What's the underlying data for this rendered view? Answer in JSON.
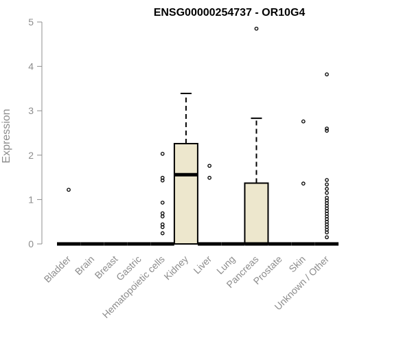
{
  "chart_data": {
    "type": "boxplot",
    "title": "ENSG00000254737 - OR10G4",
    "xlabel": "",
    "ylabel": "Expression",
    "ylim": [
      0,
      5
    ],
    "yticks": [
      0,
      1,
      2,
      3,
      4,
      5
    ],
    "grid": false,
    "colors": {
      "box_fill": "#ede7cd",
      "box_stroke": "#000000",
      "axis": "#8c8c8c",
      "title": "#000000"
    },
    "categories": [
      "Bladder",
      "Brain",
      "Breast",
      "Gastric",
      "Hematopoietic cells",
      "Kidney",
      "Liver",
      "Lung",
      "Pancreas",
      "Prostate",
      "Skin",
      "Unknown / Other"
    ],
    "boxes": [
      {
        "category": "Bladder",
        "q1": 0,
        "median": 0,
        "q3": 0,
        "whisker_low": 0,
        "whisker_high": 0,
        "outliers": [
          1.22
        ]
      },
      {
        "category": "Brain",
        "q1": 0,
        "median": 0,
        "q3": 0,
        "whisker_low": 0,
        "whisker_high": 0,
        "outliers": []
      },
      {
        "category": "Breast",
        "q1": 0,
        "median": 0,
        "q3": 0,
        "whisker_low": 0,
        "whisker_high": 0,
        "outliers": []
      },
      {
        "category": "Gastric",
        "q1": 0,
        "median": 0,
        "q3": 0,
        "whisker_low": 0,
        "whisker_high": 0,
        "outliers": []
      },
      {
        "category": "Hematopoietic cells",
        "q1": 0,
        "median": 0,
        "q3": 0,
        "whisker_low": 0,
        "whisker_high": 0,
        "outliers": [
          2.03,
          1.49,
          1.43,
          0.93,
          0.69,
          0.62,
          0.44,
          0.38,
          0.24
        ]
      },
      {
        "category": "Kidney",
        "q1": 0,
        "median": 1.56,
        "q3": 2.26,
        "whisker_low": 0,
        "whisker_high": 3.39,
        "outliers": []
      },
      {
        "category": "Liver",
        "q1": 0,
        "median": 0,
        "q3": 0,
        "whisker_low": 0,
        "whisker_high": 0,
        "outliers": [
          1.76,
          1.49
        ]
      },
      {
        "category": "Lung",
        "q1": 0,
        "median": 0,
        "q3": 0,
        "whisker_low": 0,
        "whisker_high": 0,
        "outliers": []
      },
      {
        "category": "Pancreas",
        "q1": 0,
        "median": 0,
        "q3": 1.37,
        "whisker_low": 0,
        "whisker_high": 2.83,
        "outliers": [
          4.85
        ]
      },
      {
        "category": "Prostate",
        "q1": 0,
        "median": 0,
        "q3": 0,
        "whisker_low": 0,
        "whisker_high": 0,
        "outliers": []
      },
      {
        "category": "Skin",
        "q1": 0,
        "median": 0,
        "q3": 0,
        "whisker_low": 0,
        "whisker_high": 0,
        "outliers": [
          2.76,
          1.36
        ]
      },
      {
        "category": "Unknown / Other",
        "q1": 0,
        "median": 0,
        "q3": 0,
        "whisker_low": 0,
        "whisker_high": 0,
        "outliers": [
          3.82,
          2.6,
          2.55,
          1.44,
          1.34,
          1.24,
          1.15,
          1.04,
          0.98,
          0.92,
          0.86,
          0.8,
          0.74,
          0.68,
          0.62,
          0.56,
          0.5,
          0.44,
          0.38,
          0.32,
          0.26,
          0.15
        ]
      }
    ]
  }
}
